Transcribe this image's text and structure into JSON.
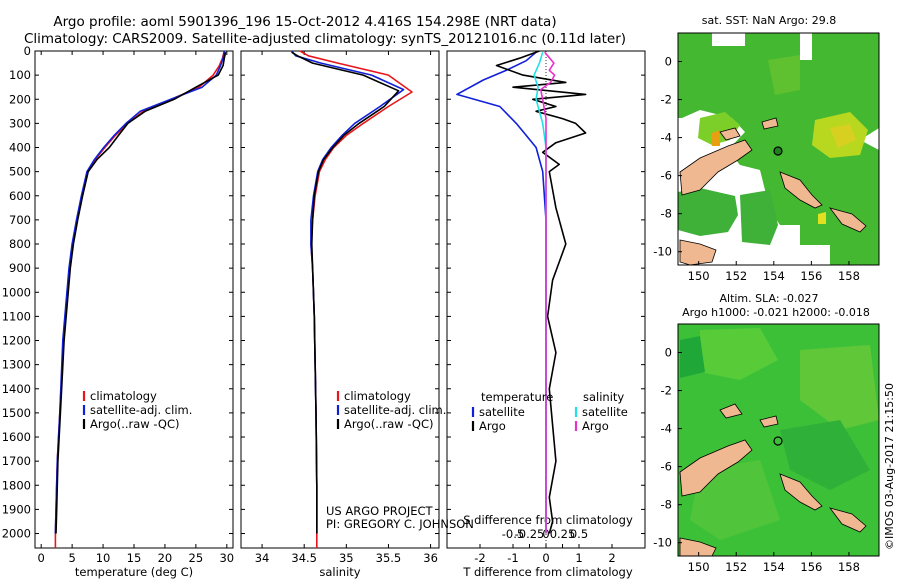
{
  "header": {
    "line1": "Argo profile: aoml 5901396_196 15-Oct-2012 4.416S 154.298E (NRT data)",
    "line2": "Climatology: CARS2009. Satellite-adjusted climatology: synTS_20121016.nc (0.11d later)"
  },
  "colors": {
    "climatology": "#e8161b",
    "satellite": "#1020d8",
    "argo": "#000000",
    "salinity_satellite": "#20e0e8",
    "salinity_argo": "#e830d0",
    "land": "#f0b890"
  },
  "chart_data": [
    {
      "id": "temperature",
      "type": "line",
      "xlabel": "temperature (deg C)",
      "ylabel": "",
      "xlim": [
        -1,
        31
      ],
      "ylim": [
        2060,
        0
      ],
      "x_ticks": [
        0,
        5,
        10,
        15,
        20,
        25,
        30
      ],
      "y_ticks": [
        0,
        100,
        200,
        300,
        400,
        500,
        600,
        700,
        800,
        900,
        1000,
        1100,
        1200,
        1300,
        1400,
        1500,
        1600,
        1700,
        1800,
        1900,
        2000
      ],
      "y_tick_labels": [
        "0",
        "100",
        "200",
        "300",
        "400",
        "500",
        "600",
        "700",
        "800",
        "900",
        "1000",
        "1100",
        "1200",
        "1300",
        "1400",
        "1500",
        "1600",
        "1700",
        "1800",
        "1900",
        "2000"
      ],
      "legend": [
        "climatology",
        "satellite-adj. clim.",
        "Argo(..raw -QC)"
      ],
      "series": [
        {
          "name": "climatology",
          "color_key": "climatology",
          "x": [
            29.6,
            29.3,
            28.8,
            27.8,
            25.5,
            21.0,
            16.5,
            14.0,
            12.0,
            10.3,
            8.7,
            7.5,
            6.6,
            5.8,
            5.1,
            4.6,
            3.6,
            3.0,
            2.6,
            2.4,
            2.3,
            2.3
          ],
          "y": [
            0,
            30,
            60,
            100,
            150,
            200,
            250,
            300,
            350,
            400,
            450,
            500,
            600,
            700,
            800,
            900,
            1200,
            1500,
            1700,
            1900,
            2000,
            2060
          ]
        },
        {
          "name": "satellite-adj. clim.",
          "color_key": "satellite",
          "x": [
            29.6,
            29.4,
            29.0,
            28.3,
            26.0,
            22.0,
            16.0,
            13.7,
            11.8,
            10.1,
            8.6,
            7.4,
            6.5,
            5.7,
            5.0,
            4.5,
            3.5,
            3.0,
            2.6,
            2.4,
            2.3
          ],
          "y": [
            0,
            30,
            60,
            100,
            150,
            190,
            250,
            300,
            350,
            400,
            450,
            500,
            600,
            700,
            800,
            900,
            1200,
            1500,
            1700,
            1900,
            2000
          ]
        },
        {
          "name": "Argo(..raw -QC)",
          "color_key": "argo",
          "x": [
            29.8,
            29.6,
            29.4,
            28.6,
            25.0,
            21.5,
            16.8,
            14.0,
            12.5,
            11.0,
            9.0,
            7.6,
            6.7,
            5.9,
            5.2,
            4.7,
            3.7,
            3.1,
            2.7,
            2.5,
            2.4
          ],
          "y": [
            5,
            30,
            60,
            100,
            150,
            200,
            250,
            300,
            350,
            400,
            450,
            500,
            600,
            700,
            800,
            900,
            1200,
            1500,
            1700,
            1900,
            2000
          ]
        }
      ]
    },
    {
      "id": "salinity",
      "type": "line",
      "xlabel": "salinity",
      "xlim": [
        33.75,
        36.1
      ],
      "ylim": [
        2060,
        0
      ],
      "x_ticks": [
        34,
        34.5,
        35,
        35.5,
        36
      ],
      "legend": [
        "climatology",
        "satellite-adj. clim.",
        "Argo(..raw -QC)"
      ],
      "series": [
        {
          "name": "climatology",
          "color_key": "climatology",
          "x": [
            34.45,
            34.55,
            34.9,
            35.5,
            35.78,
            35.5,
            35.2,
            35.0,
            34.85,
            34.75,
            34.68,
            34.63,
            34.6,
            34.58,
            34.6,
            34.62,
            34.64,
            34.65,
            34.65
          ],
          "y": [
            0,
            20,
            50,
            100,
            170,
            230,
            300,
            350,
            400,
            450,
            500,
            600,
            700,
            800,
            900,
            1100,
            1500,
            1800,
            2060
          ]
        },
        {
          "name": "satellite-adj. clim.",
          "color_key": "satellite",
          "x": [
            34.35,
            34.4,
            34.7,
            35.3,
            35.68,
            35.4,
            35.1,
            34.95,
            34.82,
            34.72,
            34.66,
            34.61,
            34.58,
            34.58,
            34.6,
            34.62,
            34.64,
            34.65,
            34.65
          ],
          "y": [
            0,
            20,
            50,
            100,
            160,
            230,
            300,
            350,
            400,
            450,
            500,
            600,
            700,
            800,
            900,
            1100,
            1500,
            1800,
            2000
          ]
        },
        {
          "name": "Argo(..raw -QC)",
          "color_key": "argo",
          "x": [
            34.35,
            34.42,
            34.6,
            35.2,
            35.62,
            35.45,
            35.15,
            34.97,
            34.84,
            34.73,
            34.67,
            34.62,
            34.6,
            34.59,
            34.6,
            34.62,
            34.64,
            34.65,
            34.65
          ],
          "y": [
            5,
            20,
            50,
            100,
            165,
            230,
            300,
            350,
            400,
            450,
            500,
            600,
            700,
            800,
            900,
            1100,
            1500,
            1800,
            2000
          ]
        }
      ]
    },
    {
      "id": "difference",
      "type": "line",
      "top_label": "S difference from climatology",
      "xlabel": "T difference from climatology",
      "xlim": [
        -3.0,
        3.0
      ],
      "ylim": [
        2060,
        0
      ],
      "t_ticks": [
        -2,
        -1,
        0,
        1,
        2
      ],
      "s_ticks": [
        -0.5,
        -0.25,
        0,
        0.25,
        0.5
      ],
      "s_tick_labels": [
        "-0.5",
        "-0.25",
        "0",
        "0.25",
        "0.5"
      ],
      "legend_titles": [
        "temperature",
        "salinity"
      ],
      "legend": [
        "satellite",
        "Argo",
        "satellite",
        "Argo"
      ],
      "series": [
        {
          "name": "T satellite",
          "color_key": "satellite",
          "x": [
            -0.3,
            -0.6,
            -1.2,
            -1.9,
            -2.7,
            -1.4,
            -0.9,
            -0.6,
            -0.3,
            -0.1,
            0.0,
            0.0,
            0.0,
            0.0,
            0.0
          ],
          "y": [
            5,
            40,
            80,
            120,
            180,
            230,
            300,
            350,
            400,
            500,
            700,
            1000,
            1400,
            1800,
            2000
          ]
        },
        {
          "name": "T Argo",
          "color_key": "argo",
          "x": [
            -0.2,
            -0.8,
            -1.5,
            -0.7,
            0.6,
            -1.0,
            1.2,
            -0.4,
            0.3,
            -0.3,
            0.5,
            0.9,
            1.2,
            0.3,
            -0.1,
            0.4,
            0.1,
            0.3,
            0.6,
            0.2,
            0.05,
            0.3,
            0.1,
            0.2,
            0.3,
            0.1,
            0.2,
            0.1
          ],
          "y": [
            0,
            30,
            60,
            100,
            130,
            150,
            180,
            200,
            230,
            250,
            280,
            300,
            340,
            380,
            420,
            470,
            500,
            650,
            800,
            950,
            1100,
            1250,
            1400,
            1550,
            1700,
            1850,
            1950,
            2000
          ]
        },
        {
          "name": "S satellite",
          "color_key": "salinity_satellite",
          "x": [
            -0.05,
            -0.1,
            -0.18,
            -0.12,
            -0.15,
            -0.05,
            0.0,
            0.0,
            0.0,
            0.0,
            0.0
          ],
          "y": [
            5,
            50,
            100,
            150,
            200,
            300,
            400,
            600,
            900,
            1300,
            2000
          ]
        },
        {
          "name": "S Argo",
          "color_key": "salinity_argo",
          "x": [
            -0.02,
            0.12,
            0.05,
            0.13,
            0.07,
            -0.08,
            -0.05,
            0.0,
            0.0,
            0.0,
            0.0,
            0.0,
            0.0
          ],
          "y": [
            5,
            50,
            80,
            100,
            130,
            160,
            200,
            280,
            400,
            600,
            1000,
            1500,
            2000
          ]
        }
      ]
    },
    {
      "id": "sst_map",
      "type": "heatmap",
      "title": "sat. SST: NaN Argo: 29.8",
      "x_ticks": [
        "150",
        "152",
        "154",
        "156",
        "158"
      ],
      "y_ticks": [
        "0",
        "-2",
        "-4",
        "-6",
        "-8",
        "-10"
      ]
    },
    {
      "id": "sla_map",
      "type": "heatmap",
      "title_line1": "Altim. SLA: -0.027",
      "title_line2": "Argo h1000: -0.021 h2000: -0.018",
      "x_ticks": [
        "150",
        "152",
        "154",
        "156",
        "158"
      ],
      "y_ticks": [
        "0",
        "-2",
        "-4",
        "-6",
        "-8",
        "-10"
      ]
    }
  ],
  "credits": {
    "project": "US ARGO PROJECT",
    "pi": "PI: GREGORY C. JOHNSON",
    "imos": "©IMOS 03-Aug-2017 21:15:50"
  }
}
